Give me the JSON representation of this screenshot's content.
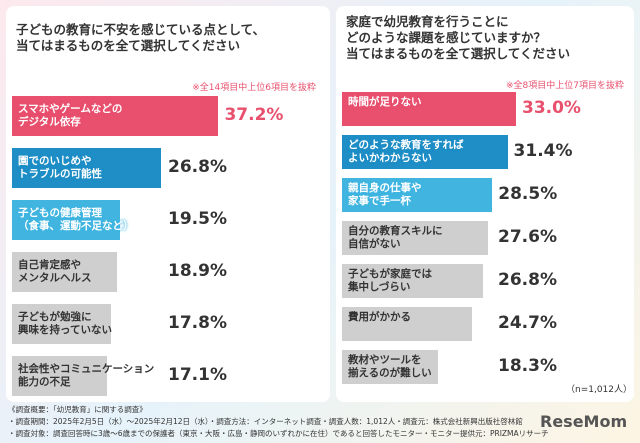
{
  "chart_data": [
    {
      "type": "bar",
      "orientation": "horizontal",
      "title": "子どもの教育に不安を感じている点として、\n当てはまるものを全て選択してください",
      "subtitle": "※全14項目中上位6項目を抜粋",
      "categories": [
        "スマホやゲームなどの\nデジタル依存",
        "園でのいじめや\nトラブルの可能性",
        "子どもの健康管理\n（食事、運動不足など）",
        "自己肯定感や\nメンタルヘルス",
        "子どもが勉強に\n興味を持っていない",
        "社会性やコミュニケーション\n能力の不足"
      ],
      "values": [
        37.2,
        26.8,
        19.5,
        18.9,
        17.8,
        17.1
      ],
      "value_labels": [
        "37.2%",
        "26.8%",
        "19.5%",
        "18.9%",
        "17.8%",
        "17.1%"
      ],
      "colors": [
        "#e8506e",
        "#1f8ec6",
        "#41b5e0",
        "#cfcfcf",
        "#cfcfcf",
        "#cfcfcf"
      ],
      "xlim": [
        0,
        40
      ]
    },
    {
      "type": "bar",
      "orientation": "horizontal",
      "title": "家庭で幼児教育を行うことに\nどのような課題を感じていますか？\n当てはまるものを全て選択してください",
      "subtitle": "※全8項目中上位7項目を抜粋",
      "categories": [
        "時間が足りない",
        "どのような教育をすれば\nよいかわからない",
        "親自身の仕事や\n家事で手一杯",
        "自分の教育スキルに\n自信がない",
        "子どもが家庭では\n集中しづらい",
        "費用がかかる",
        "教材やツールを\n揃えるのが難しい"
      ],
      "values": [
        33.0,
        31.4,
        28.5,
        27.6,
        26.8,
        24.7,
        18.3
      ],
      "value_labels": [
        "33.0%",
        "31.4%",
        "28.5%",
        "27.6%",
        "26.8%",
        "24.7%",
        "18.3%"
      ],
      "colors": [
        "#e8506e",
        "#1f8ec6",
        "#41b5e0",
        "#cfcfcf",
        "#cfcfcf",
        "#cfcfcf",
        "#cfcfcf"
      ],
      "xlim": [
        0,
        40
      ]
    }
  ],
  "sample_size": "（n=1,012人）",
  "notes": [
    "《調査概要：「幼児教育」に関する調査》",
    "・調査期間：2025年2月5日（水）〜2025年2月12日（水）・調査方法：インターネット調査・調査人数：1,012人・調査元：株式会社新興出版社啓林館",
    "・調査対象：調査回答時に3歳〜6歳までの保護者（東京・大阪・広島・静岡のいずれかに在住）であると回答したモニター・モニター提供元：PRIZMAリサーチ"
  ],
  "logo": "ReseMom"
}
